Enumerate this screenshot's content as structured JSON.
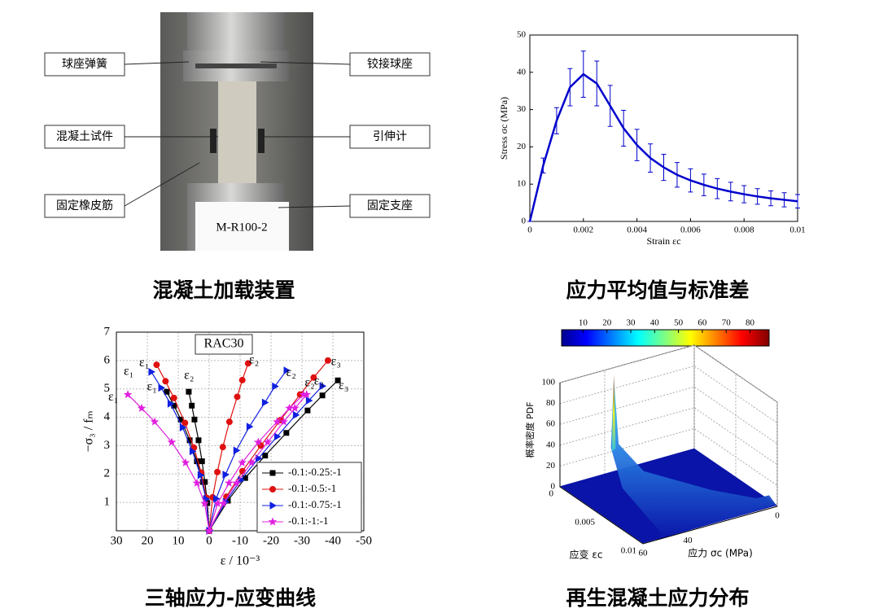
{
  "photo": {
    "labels_left": [
      "球座弹簧",
      "混凝土试件",
      "固定橡皮筋"
    ],
    "labels_right": [
      "铰接球座",
      "引伸计",
      "固定支座"
    ],
    "specimen_tag": "M-R100-2",
    "caption": "混凝土加载装置"
  },
  "chart_data": [
    {
      "type": "errorbar_line",
      "caption": "应力平均值与标准差",
      "xlabel": "Strain εc",
      "ylabel": "Stress σc (MPa)",
      "x": [
        0,
        0.0005,
        0.001,
        0.0015,
        0.002,
        0.0025,
        0.003,
        0.0035,
        0.004,
        0.0045,
        0.005,
        0.0055,
        0.006,
        0.0065,
        0.007,
        0.0075,
        0.008,
        0.0085,
        0.009,
        0.0095,
        0.01
      ],
      "series": [
        {
          "color": "#0000cc",
          "values": [
            0,
            15,
            27,
            36,
            39.5,
            37,
            31,
            25,
            20.5,
            17,
            14.5,
            12.5,
            11,
            9.8,
            8.8,
            8,
            7.3,
            6.7,
            6.2,
            5.8,
            5.4
          ],
          "errors": [
            0,
            2,
            3.5,
            5,
            6.2,
            6,
            5.5,
            4.8,
            4.2,
            3.8,
            3.5,
            3.3,
            3.1,
            2.9,
            2.7,
            2.5,
            2.3,
            2.1,
            2,
            1.9,
            1.8
          ]
        }
      ],
      "xlim": [
        0,
        0.01
      ],
      "xticks": [
        0,
        0.002,
        0.004,
        0.006,
        0.008,
        0.01
      ],
      "ylim": [
        0,
        50
      ],
      "yticks": [
        0,
        10,
        20,
        30,
        40,
        50
      ]
    },
    {
      "type": "line_markers",
      "caption": "三轴应力-应变曲线",
      "title": "RAC30",
      "xlabel": "ε / 10⁻³",
      "ylabel": "−σ₃ / fₘ",
      "xlim": [
        30,
        -50
      ],
      "xticks": [
        30,
        20,
        10,
        0,
        -10,
        -20,
        -30,
        -40,
        -50
      ],
      "ylim": [
        0,
        7
      ],
      "yticks": [
        1,
        2,
        3,
        4,
        5,
        6,
        7
      ],
      "grid": true,
      "legend": "lower right",
      "series": [
        {
          "name": "-0.1:-0.25:-1",
          "color": "#000000",
          "marker": "square",
          "x": [
            0,
            0.75,
            2.06,
            3.97,
            6.3,
            9.18,
            11.37,
            13.7,
            null,
            0,
            0.59,
            1.39,
            2.31,
            3.43,
            4.75,
            5.61,
            6.6,
            null,
            0,
            -6.03,
            -11.65,
            -18.1,
            -24.96,
            -31.82,
            -36.61,
            -41.6
          ],
          "values": [
            0,
            0.98,
            1.72,
            2.45,
            3.19,
            3.92,
            4.41,
            4.9,
            null,
            0,
            0.98,
            1.72,
            2.45,
            3.19,
            3.92,
            4.41,
            4.9,
            null,
            0,
            1.06,
            1.86,
            2.65,
            3.45,
            4.24,
            4.77,
            5.3
          ]
        },
        {
          "name": "-0.1:-0.5:-1",
          "color": "#e01010",
          "marker": "circle",
          "x": [
            0,
            0.94,
            2.55,
            4.93,
            7.82,
            11.39,
            14.11,
            17,
            null,
            0,
            -1.13,
            -2.65,
            -4.41,
            -6.55,
            -9.07,
            -10.71,
            -12.6,
            null,
            0,
            -5.57,
            -10.75,
            -16.7,
            -23.04,
            -29.38,
            -33.79,
            -38.4
          ],
          "values": [
            0,
            1.17,
            2.05,
            2.93,
            3.8,
            4.68,
            5.27,
            5.85,
            null,
            0,
            1.18,
            2.07,
            2.95,
            3.84,
            4.72,
            5.31,
            5.9,
            null,
            0,
            1.2,
            2.1,
            3,
            3.9,
            4.8,
            5.4,
            6
          ]
        },
        {
          "name": "-0.1:-0.75:-1",
          "color": "#1020e0",
          "marker": "triangle",
          "x": [
            0,
            1.03,
            2.81,
            5.42,
            8.6,
            12.53,
            15.52,
            18.7,
            null,
            0,
            -2.25,
            -5.25,
            -8.75,
            -13,
            -18,
            -21.25,
            -25,
            null,
            0,
            -5.31,
            -10.25,
            -15.92,
            -21.96,
            -28,
            -32.21,
            -36.6
          ],
          "values": [
            0,
            1.12,
            1.96,
            2.8,
            3.64,
            4.48,
            5.04,
            5.6,
            null,
            0,
            1.13,
            1.98,
            2.83,
            3.67,
            4.52,
            5.09,
            5.65,
            null,
            0,
            1.02,
            1.79,
            2.55,
            3.32,
            4.08,
            4.59,
            5.1
          ]
        },
        {
          "name": "-0.1:-1:-1",
          "color": "#e020e0",
          "marker": "star",
          "x": [
            0,
            1.45,
            3.95,
            7.63,
            12.1,
            17.62,
            21.83,
            26.3,
            null,
            0,
            -2.75,
            -6.41,
            -10.68,
            -15.86,
            -21.96,
            -25.93,
            -30.5,
            null,
            0,
            -4.57,
            -8.82,
            -13.7,
            -18.9,
            -24.1,
            -27.72,
            -31.5
          ],
          "values": [
            0,
            0.96,
            1.68,
            2.4,
            3.12,
            3.84,
            4.32,
            4.8,
            null,
            0,
            0.96,
            1.68,
            2.4,
            3.12,
            3.84,
            4.32,
            4.8,
            null,
            0,
            0.96,
            1.68,
            2.4,
            3.12,
            3.84,
            4.32,
            4.8
          ]
        }
      ],
      "annotations": [
        {
          "text": "ε₁",
          "x": 21,
          "y": 5.9
        },
        {
          "text": "ε₁",
          "x": 26,
          "y": 5.6
        },
        {
          "text": "ε₁",
          "x": 18.5,
          "y": 5.05
        },
        {
          "text": "ε₁",
          "x": 31,
          "y": 4.7
        },
        {
          "text": "ε₂",
          "x": 6.5,
          "y": 5.45
        },
        {
          "text": "ε₂",
          "x": -14.5,
          "y": 6.0
        },
        {
          "text": "ε₂",
          "x": -26.5,
          "y": 5.55
        },
        {
          "text": "ε₂",
          "x": -32.5,
          "y": 5.2
        },
        {
          "text": "ε₃",
          "x": -41,
          "y": 5.95
        },
        {
          "text": "ε₃",
          "x": -35.5,
          "y": 5.25
        },
        {
          "text": "ε₃",
          "x": -43.5,
          "y": 5.1
        }
      ]
    },
    {
      "type": "surface3d",
      "caption": "再生混凝土应力分布",
      "zlabel": "概率密度 PDF",
      "xlabel": "应变 εc",
      "ylabel": "应力 σc (MPa)",
      "xlim": [
        0,
        0.01
      ],
      "xticks": [
        0,
        0.005,
        0.01
      ],
      "ylim": [
        0,
        60
      ],
      "yticks": [
        60,
        40,
        0
      ],
      "zlim": [
        0,
        100
      ],
      "zticks": [
        0,
        20,
        40,
        60,
        80,
        100
      ],
      "clim": [
        1,
        88
      ],
      "cticks": [
        10,
        20,
        30,
        40,
        50,
        60,
        70,
        80
      ],
      "colormap": "jet"
    }
  ]
}
